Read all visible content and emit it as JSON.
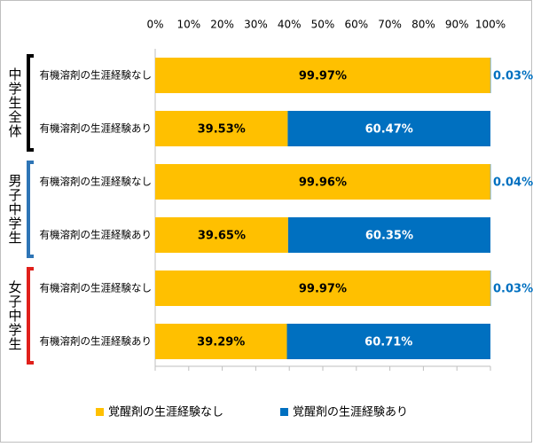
{
  "chart_data": {
    "type": "stacked-bar-horizontal",
    "groups": [
      {
        "name": "中学生全体",
        "color": "#000000",
        "categories": [
          "有機溶剤の生涯経験なし",
          "有機溶剤の生涯経験あり"
        ]
      },
      {
        "name": "男子中学生",
        "color": "#2e75b6",
        "categories": [
          "有機溶剤の生涯経験なし",
          "有機溶剤の生涯経験あり"
        ]
      },
      {
        "name": "女子中学生",
        "color": "#e0201b",
        "categories": [
          "有機溶剤の生涯経験なし",
          "有機溶剤の生涯経験あり"
        ]
      }
    ],
    "series": [
      {
        "name": "覚醒剤の生涯経験なし",
        "color": "#ffc000",
        "values": [
          99.97,
          39.53,
          99.96,
          39.65,
          99.97,
          39.29
        ],
        "value_labels": [
          "99.97%",
          "39.53%",
          "99.96%",
          "39.65%",
          "99.97%",
          "39.29%"
        ]
      },
      {
        "name": "覚醒剤の生涯経験あり",
        "color": "#0070c0",
        "values": [
          0.03,
          60.47,
          0.04,
          60.35,
          0.03,
          60.71
        ],
        "value_labels": [
          "0.03%",
          "60.47%",
          "0.04%",
          "60.35%",
          "0.03%",
          "60.71%"
        ]
      }
    ],
    "xlim": [
      0,
      100
    ],
    "xticks": [
      {
        "value": 0,
        "label": "0%"
      },
      {
        "value": 10,
        "label": "10%"
      },
      {
        "value": 20,
        "label": "20%"
      },
      {
        "value": 30,
        "label": "30%"
      },
      {
        "value": 40,
        "label": "40%"
      },
      {
        "value": 50,
        "label": "50%"
      },
      {
        "value": 60,
        "label": "60%"
      },
      {
        "value": 70,
        "label": "70%"
      },
      {
        "value": 80,
        "label": "80%"
      },
      {
        "value": 90,
        "label": "90%"
      },
      {
        "value": 100,
        "label": "100%"
      }
    ],
    "legend": "bottom"
  }
}
